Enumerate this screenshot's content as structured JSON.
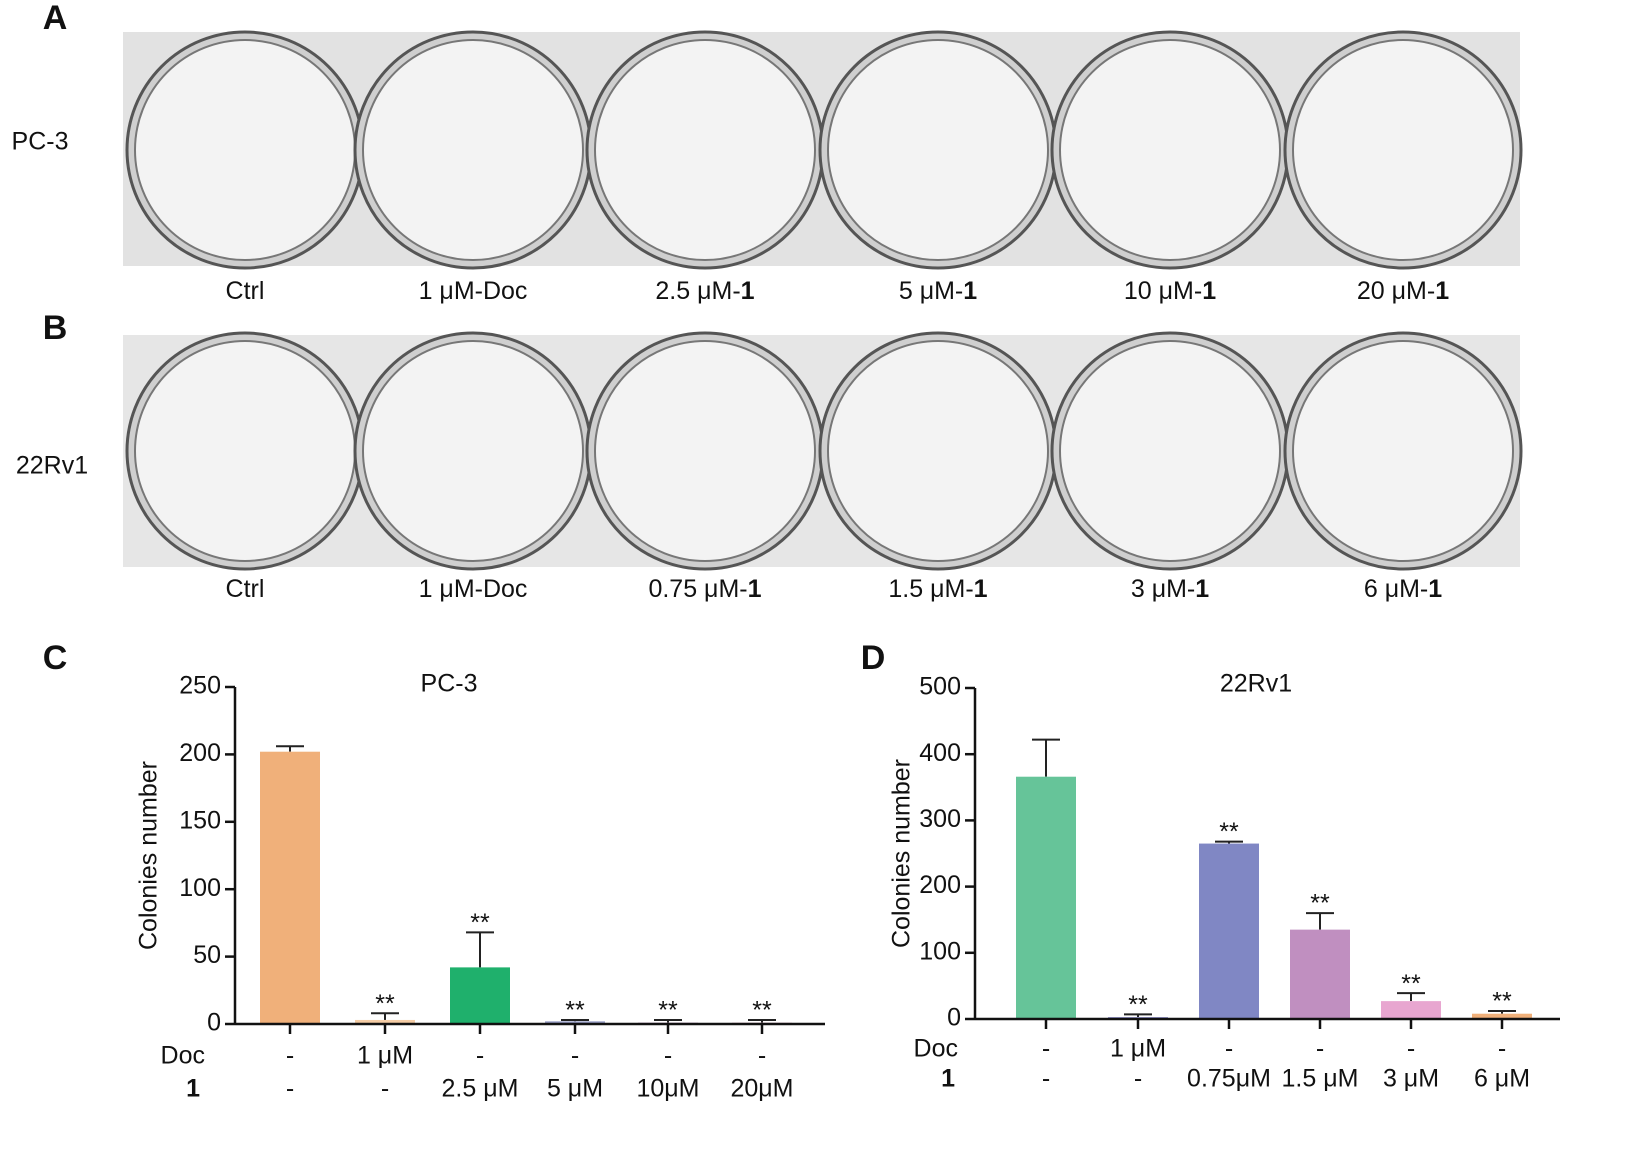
{
  "panels": [
    {
      "letter": "A",
      "row_label": "PC-3",
      "dish_labels": [
        {
          "text": "Ctrl"
        },
        {
          "text": "1 μM-Doc"
        },
        {
          "text": "2.5 μM-",
          "bold": "1"
        },
        {
          "text": "5 μM-",
          "bold": "1"
        },
        {
          "text": "10 μM-",
          "bold": "1"
        },
        {
          "text": "20 μM-",
          "bold": "1"
        }
      ]
    },
    {
      "letter": "B",
      "row_label": "22Rv1",
      "dish_labels": [
        {
          "text": "Ctrl"
        },
        {
          "text": "1 μM-Doc"
        },
        {
          "text": "0.75 μM-",
          "bold": "1"
        },
        {
          "text": "1.5 μM-",
          "bold": "1"
        },
        {
          "text": "3 μM-",
          "bold": "1"
        },
        {
          "text": "6 μM-",
          "bold": "1"
        }
      ]
    }
  ],
  "chart_data": [
    {
      "type": "bar",
      "letter": "C",
      "title": "PC-3",
      "y_label": "Colonies number",
      "values": [
        202,
        3,
        42,
        2,
        1,
        1
      ],
      "errors": [
        4,
        5,
        26,
        1,
        2,
        2
      ],
      "colors": [
        "#f0b07a",
        "#f5cda6",
        "#1fb06c",
        "#9aa0c8",
        "#c9a0c9",
        "#e9b0cf"
      ],
      "significance": [
        null,
        "**",
        "**",
        "**",
        "**",
        "**"
      ],
      "condition_rows": [
        {
          "name": "Doc",
          "labels": [
            "-",
            "1 μM",
            "-",
            "-",
            "-",
            "-"
          ]
        },
        {
          "name": "1",
          "labels": [
            "-",
            "-",
            "2.5 μM",
            "5 μM",
            "10μM",
            "20μM"
          ]
        }
      ],
      "ylim": [
        0,
        250
      ],
      "yticks": [
        0,
        50,
        100,
        150,
        200,
        250
      ]
    },
    {
      "type": "bar",
      "letter": "D",
      "title": "22Rv1",
      "y_label": "Colonies number",
      "values": [
        366,
        3,
        265,
        135,
        27,
        8
      ],
      "errors": [
        56,
        4,
        3,
        25,
        12,
        4
      ],
      "colors": [
        "#66c499",
        "#9a9ad0",
        "#8087c4",
        "#c08fc0",
        "#e8a6d0",
        "#f0b07a"
      ],
      "significance": [
        null,
        "**",
        "**",
        "**",
        "**",
        "**"
      ],
      "condition_rows": [
        {
          "name": "Doc",
          "labels": [
            "-",
            "1 μM",
            "-",
            "-",
            "-",
            "-"
          ]
        },
        {
          "name": "1",
          "labels": [
            "-",
            "-",
            "0.75μM",
            "1.5 μM",
            "3 μM",
            "6 μM"
          ]
        }
      ],
      "ylim": [
        0,
        500
      ],
      "yticks": [
        0,
        100,
        200,
        300,
        400,
        500
      ]
    }
  ]
}
